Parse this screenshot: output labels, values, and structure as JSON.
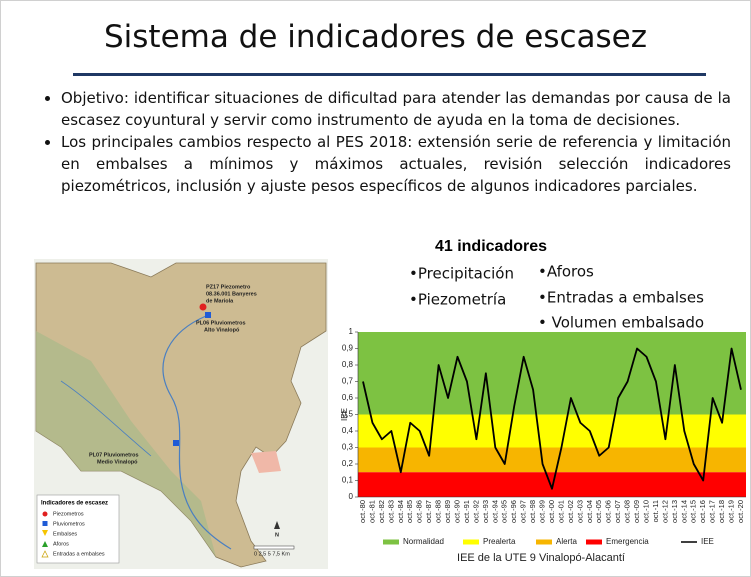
{
  "title": "Sistema de indicadores de escasez",
  "bullets": [
    "Objetivo: identificar situaciones de dificultad para atender las demandas por causa de la escasez coyuntural y servir como instrumento de ayuda en la toma de decisiones.",
    "Los principales cambios respecto al PES 2018: extensión serie de referencia y limitación en embalses a mínimos y máximos actuales, revisión selección indicadores piezométricos, inclusión y ajuste pesos específicos de algunos indicadores parciales."
  ],
  "indicators": {
    "heading": "41 indicadores",
    "left": [
      "•Precipitación",
      "•Piezometría"
    ],
    "right": [
      "•Aforos",
      "•Entradas a embalses",
      "• Volumen embalsado"
    ]
  },
  "map": {
    "stations": [
      "PZ17 Piezometro",
      "08.36.001 Banyeres",
      "de Mariola",
      "PL06 Pluviometros",
      "Alto Vinalopó",
      "PL07 Pluviometros",
      "Medio Vinalopó"
    ],
    "legend_title": "Indicadores de escasez",
    "legend": [
      "Piezometros",
      "Pluviometros",
      "Embalses",
      "Aforos",
      "Entradas a embalses"
    ],
    "north": "N",
    "scale": "0  2,5  5   7,5 Km"
  },
  "chart_data": {
    "type": "line",
    "caption": "IEE de la UTE 9 Vinalopó-Alacantí",
    "y_label": "IEE",
    "categories": [
      "oct.-80",
      "oct.-81",
      "oct.-82",
      "oct.-83",
      "oct.-84",
      "oct.-85",
      "oct.-86",
      "oct.-87",
      "oct.-88",
      "oct.-89",
      "oct.-90",
      "oct.-91",
      "oct.-92",
      "oct.-93",
      "oct.-94",
      "oct.-95",
      "oct.-96",
      "oct.-97",
      "oct.-98",
      "oct.-99",
      "oct.-00",
      "oct.-01",
      "oct.-02",
      "oct.-03",
      "oct.-04",
      "oct.-05",
      "oct.-06",
      "oct.-07",
      "oct.-08",
      "oct.-09",
      "oct.-10",
      "oct.-11",
      "oct.-12",
      "oct.-13",
      "oct.-14",
      "oct.-15",
      "oct.-16",
      "oct.-17",
      "oct.-18",
      "oct.-19",
      "oct.-20"
    ],
    "bands": [
      {
        "name": "Normalidad",
        "color": "#7dc242",
        "from": 0.5,
        "to": 1
      },
      {
        "name": "Prealerta",
        "color": "#ffff00",
        "from": 0.3,
        "to": 0.5
      },
      {
        "name": "Alerta",
        "color": "#f7b500",
        "from": 0.15,
        "to": 0.3
      },
      {
        "name": "Emergencia",
        "color": "#ff0000",
        "from": 0,
        "to": 0.15
      }
    ],
    "series": [
      {
        "name": "IEE",
        "color": "#000000",
        "values": [
          0.7,
          0.45,
          0.35,
          0.4,
          0.15,
          0.45,
          0.4,
          0.25,
          0.8,
          0.6,
          0.85,
          0.7,
          0.35,
          0.75,
          0.3,
          0.2,
          0.55,
          0.85,
          0.65,
          0.2,
          0.05,
          0.3,
          0.6,
          0.45,
          0.4,
          0.25,
          0.3,
          0.6,
          0.7,
          0.9,
          0.85,
          0.7,
          0.35,
          0.8,
          0.4,
          0.2,
          0.1,
          0.6,
          0.45,
          0.9,
          0.65
        ]
      }
    ],
    "ylim": [
      0,
      1
    ],
    "yticks": [
      0,
      {
        "value": 0.1,
        "label": "0,1"
      },
      {
        "value": 0.2,
        "label": "0,2"
      },
      {
        "value": 0.3,
        "label": "0,3"
      },
      {
        "value": 0.4,
        "label": "0,4"
      },
      {
        "value": 0.5,
        "label": "0,5"
      },
      {
        "value": 0.6,
        "label": "0,6"
      },
      {
        "value": 0.7,
        "label": "0,7"
      },
      {
        "value": 0.8,
        "label": "0,8"
      },
      {
        "value": 0.9,
        "label": "0,9"
      },
      1
    ]
  }
}
